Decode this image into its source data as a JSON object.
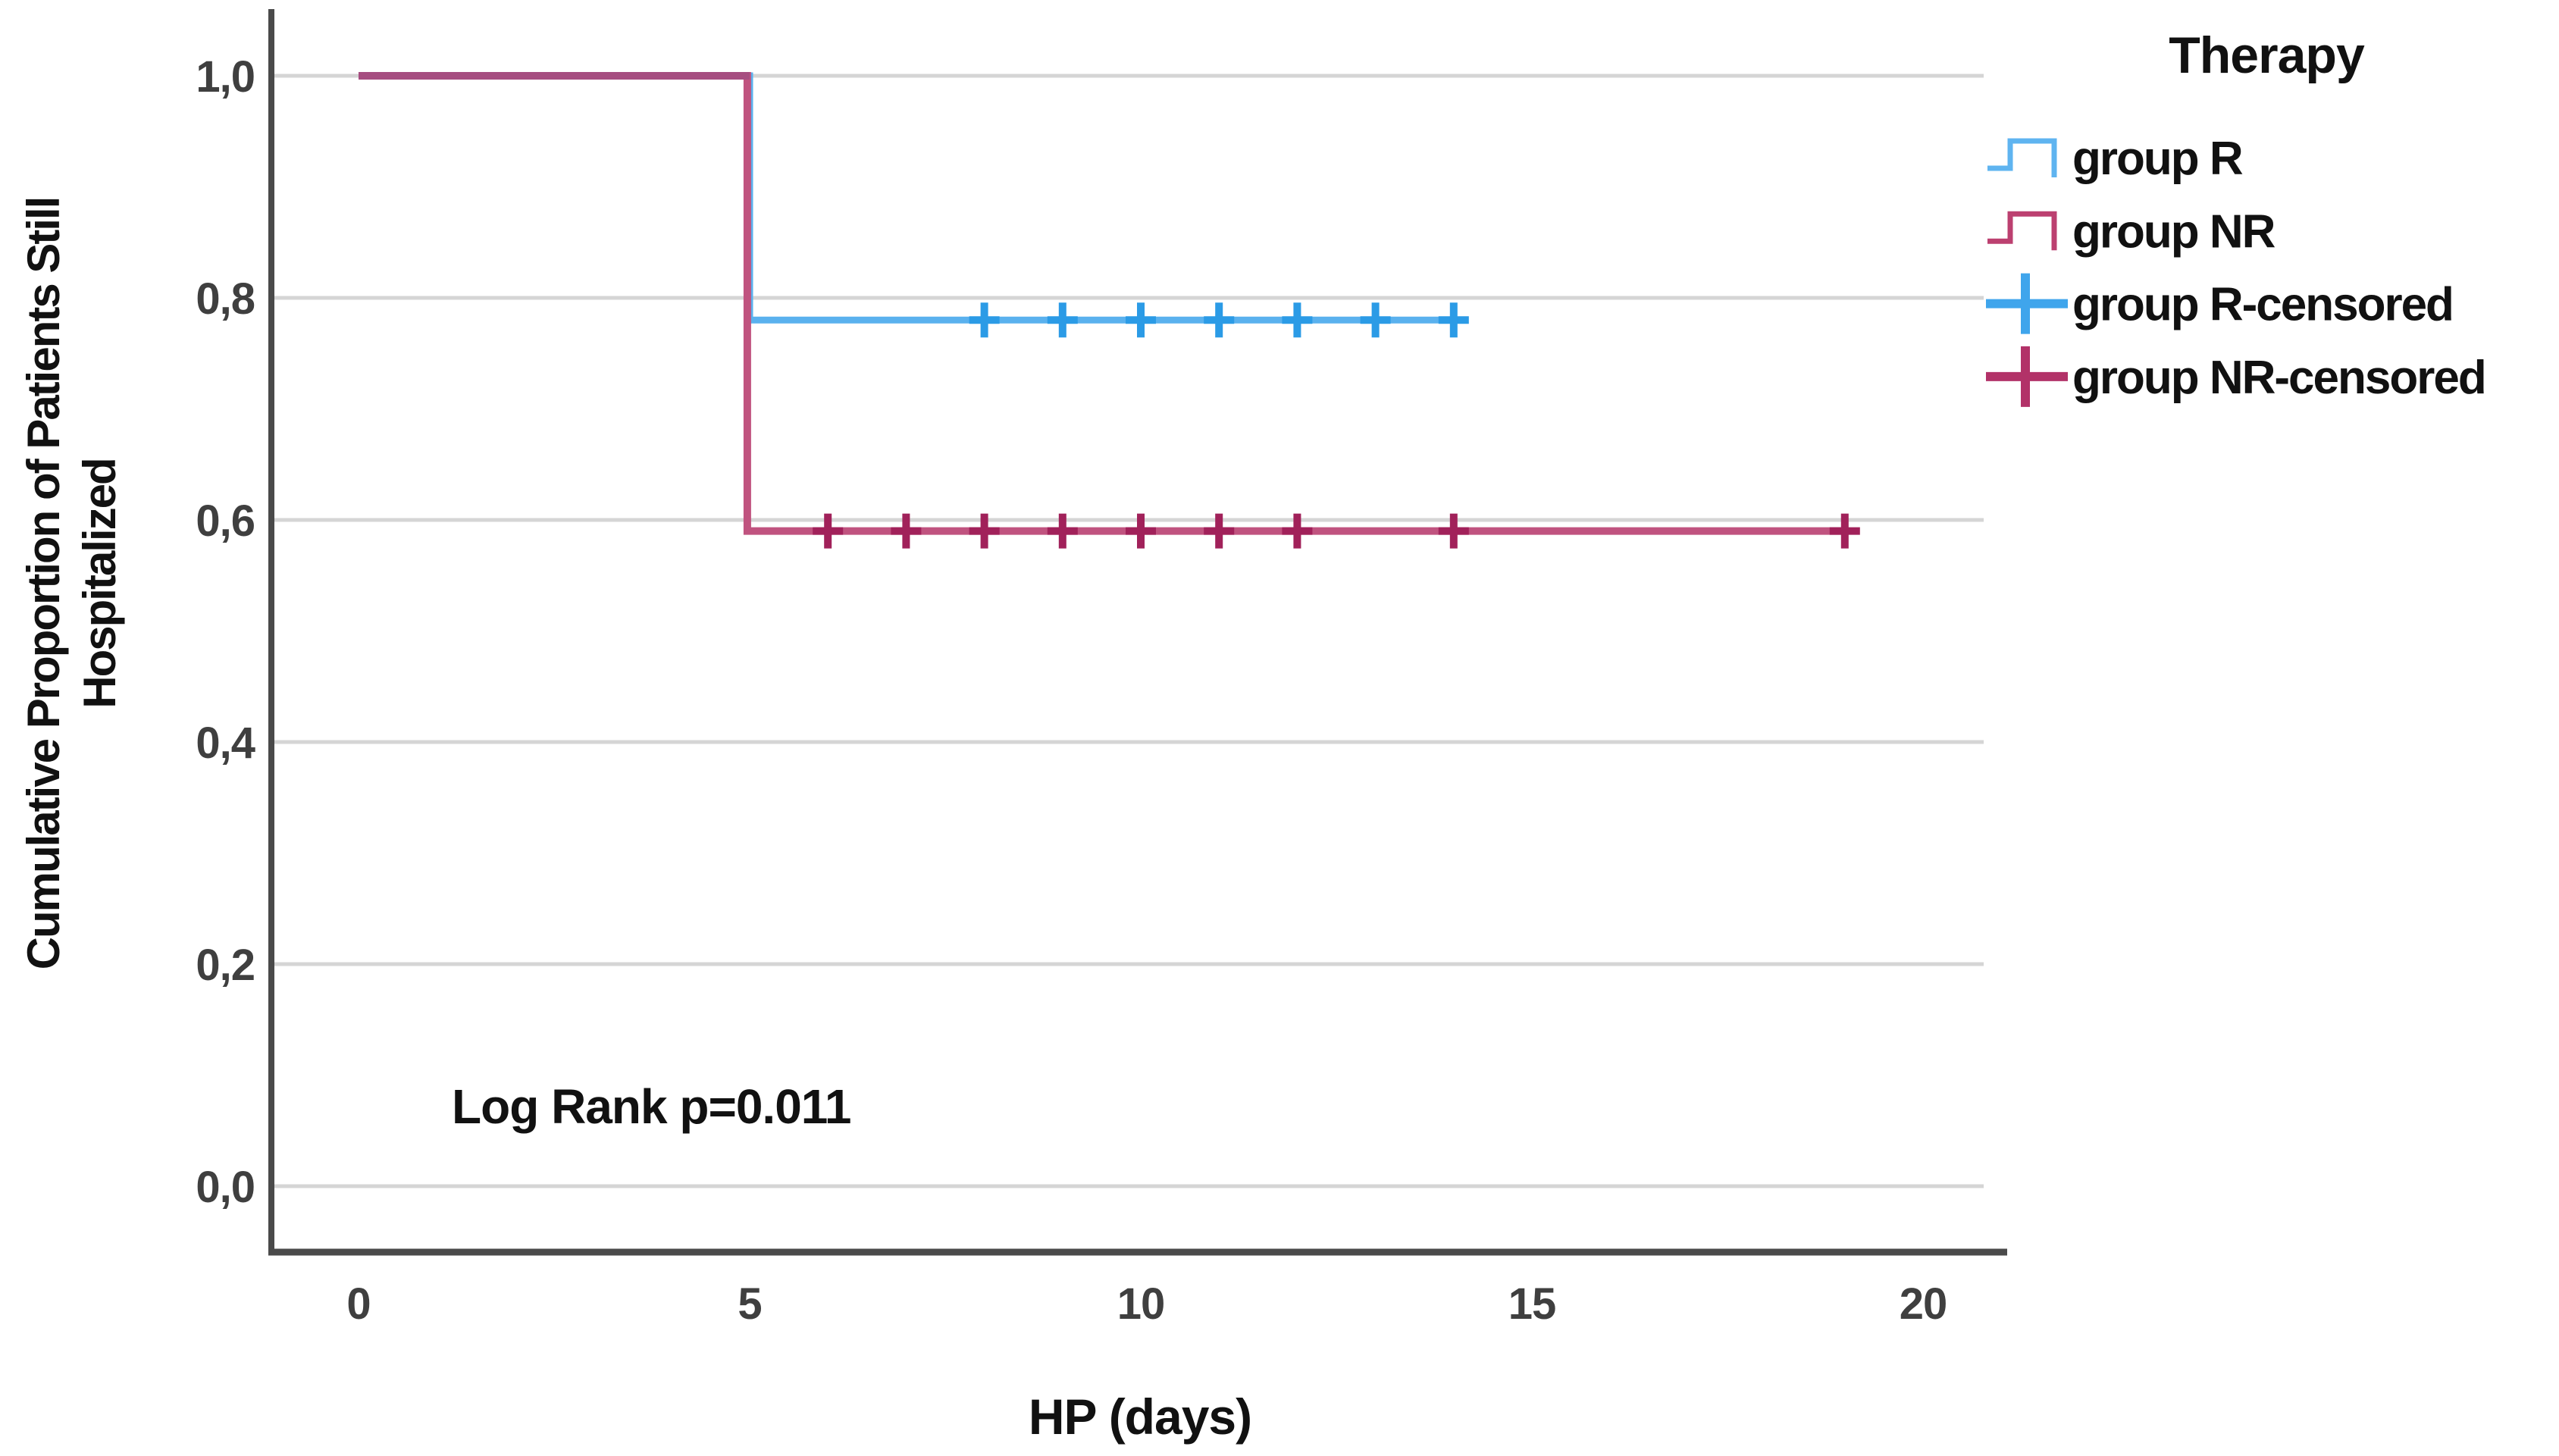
{
  "chart_data": {
    "type": "line",
    "subtype": "kaplan-meier-step",
    "title": "",
    "xlabel": "HP (days)",
    "ylabel_line1": "Cumulative Proportion of Patients Still",
    "ylabel_line2": "Hospitalized",
    "annotation": "Log Rank  p=0.011",
    "x_ticks": [
      {
        "v": 0,
        "label": "0"
      },
      {
        "v": 5,
        "label": "5"
      },
      {
        "v": 10,
        "label": "10"
      },
      {
        "v": 15,
        "label": "15"
      },
      {
        "v": 20,
        "label": "20"
      }
    ],
    "y_ticks": [
      {
        "v": 0.0,
        "label": "0,0"
      },
      {
        "v": 0.2,
        "label": "0,2"
      },
      {
        "v": 0.4,
        "label": "0,4"
      },
      {
        "v": 0.6,
        "label": "0,6"
      },
      {
        "v": 0.8,
        "label": "0,8"
      },
      {
        "v": 1.0,
        "label": "1,0"
      }
    ],
    "xlim": [
      -1.1,
      20.8
    ],
    "ylim": [
      -0.06,
      1.06
    ],
    "grid": "horizontal",
    "series": [
      {
        "name": "group R",
        "color": "#5AB1EE",
        "marker_color": "#2B9BE6",
        "x": [
          0,
          5,
          5,
          14
        ],
        "y": [
          1.0,
          1.0,
          0.78,
          0.78
        ],
        "censored": {
          "x": [
            8,
            9,
            10,
            11,
            12,
            13,
            14
          ],
          "y": 0.78
        }
      },
      {
        "name": "group NR",
        "color": "#C0537F",
        "marker_color": "#A1215A",
        "x": [
          0,
          4.97,
          4.97,
          19
        ],
        "y": [
          1.0,
          1.0,
          0.59,
          0.59
        ],
        "censored": {
          "x": [
            6,
            7,
            8,
            9,
            10,
            11,
            12,
            14,
            19
          ],
          "y": 0.59
        }
      }
    ],
    "overlap_segment": {
      "x": [
        0,
        5
      ],
      "y": 1.0,
      "color": "#A64D80"
    },
    "legend": {
      "title": "Therapy",
      "position": "right",
      "items": [
        {
          "label": "group R",
          "symbol": "step",
          "color": "#5FB4F0"
        },
        {
          "label": "group NR",
          "symbol": "step",
          "color": "#BC4070"
        },
        {
          "label": "group R-censored",
          "symbol": "plus",
          "color": "#3FA5EC"
        },
        {
          "label": "group NR-censored",
          "symbol": "plus",
          "color": "#B23268"
        }
      ]
    }
  },
  "colors": {
    "background": "#FFFFFF",
    "gridline": "#D5D5D5",
    "axis": "#4A4A4A",
    "tick_text": "#3F3F3F",
    "text": "#000000"
  }
}
